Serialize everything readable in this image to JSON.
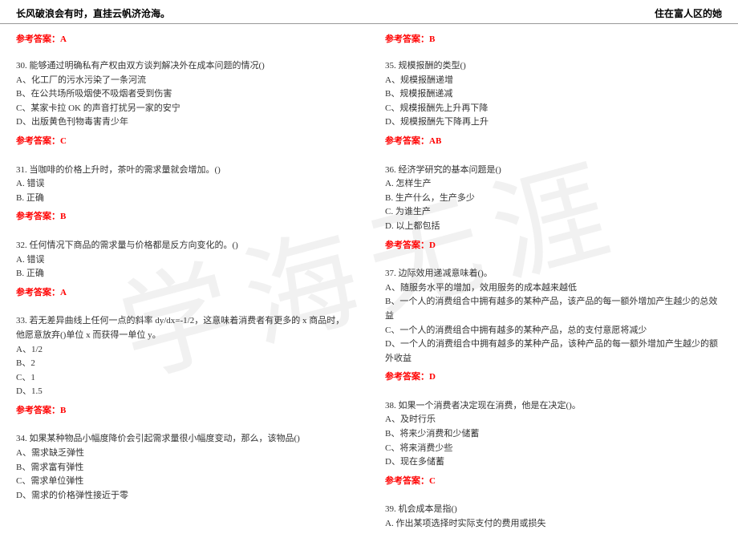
{
  "watermark": "学海无涯",
  "header": {
    "left": "长风破浪会有时，直挂云帆济沧海。",
    "right": "住在富人区的她"
  },
  "leftColumn": {
    "topAnswer": "参考答案：A",
    "questions": [
      {
        "number": "30.",
        "text": "能够通过明确私有产权由双方谈判解决外在成本问题的情况()",
        "options": [
          "A、化工厂的污水污染了一条河流",
          "B、在公共场所吸烟使不吸烟者受到伤害",
          "C、某家卡拉 OK 的声音打扰另一家的安宁",
          "D、出版黄色刊物毒害青少年"
        ],
        "answer": "参考答案：C"
      },
      {
        "number": "31.",
        "text": "当咖啡的价格上升时，茶叶的需求量就会增加。()",
        "options": [
          "A. 错误",
          "B. 正确"
        ],
        "answer": "参考答案：B"
      },
      {
        "number": "32.",
        "text": "任何情况下商品的需求量与价格都是反方向变化的。()",
        "options": [
          "A. 错误",
          "B. 正确"
        ],
        "answer": "参考答案：A"
      },
      {
        "number": "33.",
        "text": "若无差异曲线上任何一点的斜率 dy/dx=-1/2，这意味着消费者有更多的 x 商品时，他愿意放弃()单位 x 而获得一单位 y。",
        "options": [
          "A、1/2",
          "B、2",
          "C、1",
          "D、1.5"
        ],
        "answer": "参考答案：B"
      },
      {
        "number": "34.",
        "text": "如果某种物品小幅度降价会引起需求量很小幅度变动，那么，该物品()",
        "options": [
          "A、需求缺乏弹性",
          "B、需求富有弹性",
          "C、需求单位弹性",
          "D、需求的价格弹性接近于零"
        ],
        "answer": ""
      }
    ]
  },
  "rightColumn": {
    "topAnswer": "参考答案：B",
    "questions": [
      {
        "number": "35.",
        "text": "规模报酬的类型()",
        "options": [
          "A、规模报酬递增",
          "B、规模报酬递减",
          "C、规模报酬先上升再下降",
          "D、规模报酬先下降再上升"
        ],
        "answer": "参考答案：AB"
      },
      {
        "number": "36.",
        "text": "经济学研究的基本问题是()",
        "options": [
          "A. 怎样生产",
          "B. 生产什么，生产多少",
          "C. 为谁生产",
          "D. 以上都包括"
        ],
        "answer": "参考答案：D"
      },
      {
        "number": "37.",
        "text": "边际效用递减意味着()。",
        "options": [
          "A、随服务水平的增加，效用服务的成本越来越低",
          "B、一个人的消费组合中拥有越多的某种产品，该产品的每一额外增加产生越少的总效益",
          "C、一个人的消费组合中拥有越多的某种产品，总的支付意愿将减少",
          "D、一个人的消费组合中拥有越多的某种产品，该种产品的每一额外增加产生越少的额外收益"
        ],
        "answer": "参考答案：D"
      },
      {
        "number": "38.",
        "text": "如果一个消费者决定现在消费，他是在决定()。",
        "options": [
          "A、及时行乐",
          "B、将来少消费和少储蓄",
          "C、将来消费少些",
          "D、现在多储蓄"
        ],
        "answer": "参考答案：C"
      },
      {
        "number": "39.",
        "text": "机会成本是指()",
        "options": [
          "A. 作出某项选择时实际支付的费用或损失"
        ],
        "answer": ""
      }
    ]
  }
}
